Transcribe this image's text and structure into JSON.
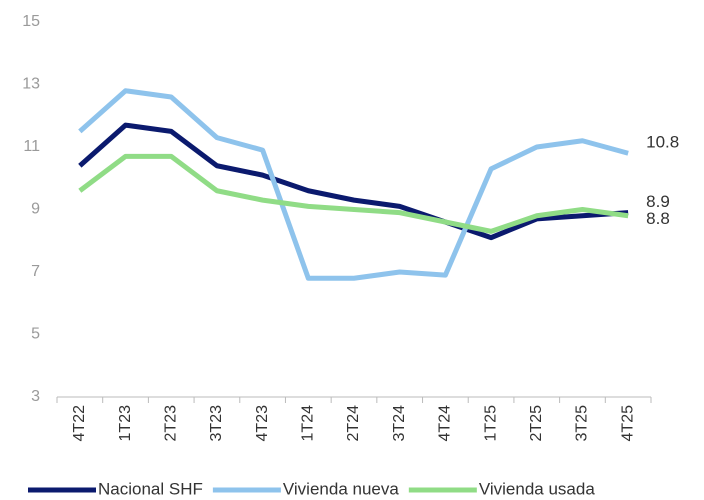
{
  "chart_data": {
    "type": "line",
    "categories": [
      "4T22",
      "1T23",
      "2T23",
      "3T23",
      "4T23",
      "1T24",
      "2T24",
      "3T24",
      "4T24",
      "1T25",
      "2T25",
      "3T25",
      "4T25"
    ],
    "series": [
      {
        "name": "Nacional SHF",
        "color": "#0b1a6e",
        "values": [
          10.4,
          11.7,
          11.5,
          10.4,
          10.1,
          9.6,
          9.3,
          9.1,
          8.6,
          8.1,
          8.7,
          8.8,
          8.9
        ]
      },
      {
        "name": "Vivienda nueva",
        "color": "#8ec3ec",
        "values": [
          11.5,
          12.8,
          12.6,
          11.3,
          10.9,
          6.8,
          6.8,
          7.0,
          6.9,
          10.3,
          11.0,
          11.2,
          10.8
        ]
      },
      {
        "name": "Vivienda usada",
        "color": "#90dc86",
        "values": [
          9.6,
          10.7,
          10.7,
          9.6,
          9.3,
          9.1,
          9.0,
          8.9,
          8.6,
          8.3,
          8.8,
          9.0,
          8.8
        ]
      }
    ],
    "ylim": [
      3,
      15
    ],
    "yticks": [
      3,
      5,
      7,
      9,
      11,
      13,
      15
    ],
    "grid": false
  }
}
